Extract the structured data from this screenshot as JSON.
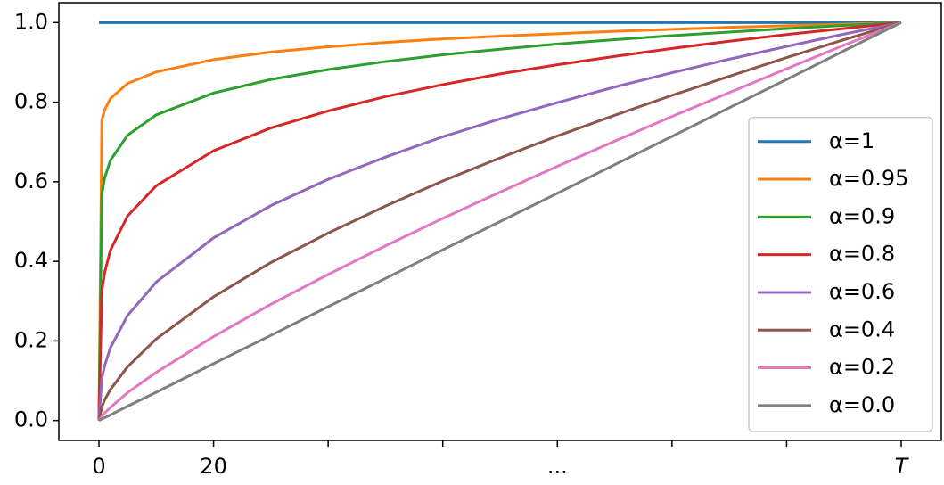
{
  "chart_data": {
    "type": "line",
    "x": [
      0,
      0.5,
      1,
      2,
      5,
      10,
      20,
      30,
      40,
      50,
      60,
      70,
      80,
      90,
      100,
      110,
      120,
      130,
      140
    ],
    "series": [
      {
        "name": "α=1",
        "color": "#1f77b4",
        "values": [
          1,
          1,
          1,
          1,
          1,
          1,
          1,
          1,
          1,
          1,
          1,
          1,
          1,
          1,
          1,
          1,
          1,
          1,
          1
        ]
      },
      {
        "name": "α=0.95",
        "color": "#ff7f0e",
        "values": [
          0,
          0.754,
          0.781,
          0.809,
          0.847,
          0.876,
          0.907,
          0.926,
          0.939,
          0.95,
          0.959,
          0.966,
          0.972,
          0.978,
          0.983,
          0.988,
          0.992,
          0.996,
          1
        ]
      },
      {
        "name": "α=0.9",
        "color": "#2ca02c",
        "values": [
          0,
          0.569,
          0.61,
          0.654,
          0.717,
          0.768,
          0.823,
          0.857,
          0.882,
          0.902,
          0.919,
          0.933,
          0.946,
          0.957,
          0.967,
          0.976,
          0.985,
          0.993,
          1
        ]
      },
      {
        "name": "α=0.8",
        "color": "#d62728",
        "values": [
          0,
          0.324,
          0.372,
          0.428,
          0.514,
          0.59,
          0.678,
          0.735,
          0.778,
          0.814,
          0.844,
          0.871,
          0.894,
          0.915,
          0.935,
          0.953,
          0.97,
          0.985,
          1
        ]
      },
      {
        "name": "α=0.6",
        "color": "#9467bd",
        "values": [
          0,
          0.105,
          0.138,
          0.183,
          0.264,
          0.348,
          0.459,
          0.54,
          0.606,
          0.662,
          0.713,
          0.758,
          0.799,
          0.838,
          0.874,
          0.908,
          0.94,
          0.971,
          1
        ]
      },
      {
        "name": "α=0.4",
        "color": "#8c564b",
        "values": [
          0,
          0.034,
          0.052,
          0.078,
          0.135,
          0.205,
          0.311,
          0.397,
          0.471,
          0.539,
          0.602,
          0.66,
          0.715,
          0.767,
          0.817,
          0.865,
          0.912,
          0.957,
          1
        ]
      },
      {
        "name": "α=0.2",
        "color": "#e377c2",
        "values": [
          0,
          0.011,
          0.019,
          0.033,
          0.07,
          0.121,
          0.211,
          0.292,
          0.367,
          0.439,
          0.508,
          0.574,
          0.639,
          0.702,
          0.764,
          0.824,
          0.884,
          0.943,
          1
        ]
      },
      {
        "name": "α=0.0",
        "color": "#7f7f7f",
        "values": [
          0,
          0.004,
          0.007,
          0.014,
          0.036,
          0.071,
          0.143,
          0.214,
          0.286,
          0.357,
          0.429,
          0.5,
          0.571,
          0.643,
          0.714,
          0.786,
          0.857,
          0.929,
          1
        ]
      }
    ],
    "xlim": [
      -7,
      147
    ],
    "ylim": [
      -0.05,
      1.05
    ],
    "xticks": [
      0,
      20,
      {
        "value": 40
      },
      {
        "value": 60
      },
      {
        "value": 80,
        "label": "..."
      },
      {
        "value": 100
      },
      {
        "value": 120
      },
      {
        "value": 140,
        "label": "T"
      }
    ],
    "yticks": [
      {
        "value": 0,
        "label": "0.0"
      },
      0.2,
      0.4,
      0.6,
      0.8,
      {
        "value": 1,
        "label": "1.0"
      }
    ],
    "legend": "lower right"
  }
}
